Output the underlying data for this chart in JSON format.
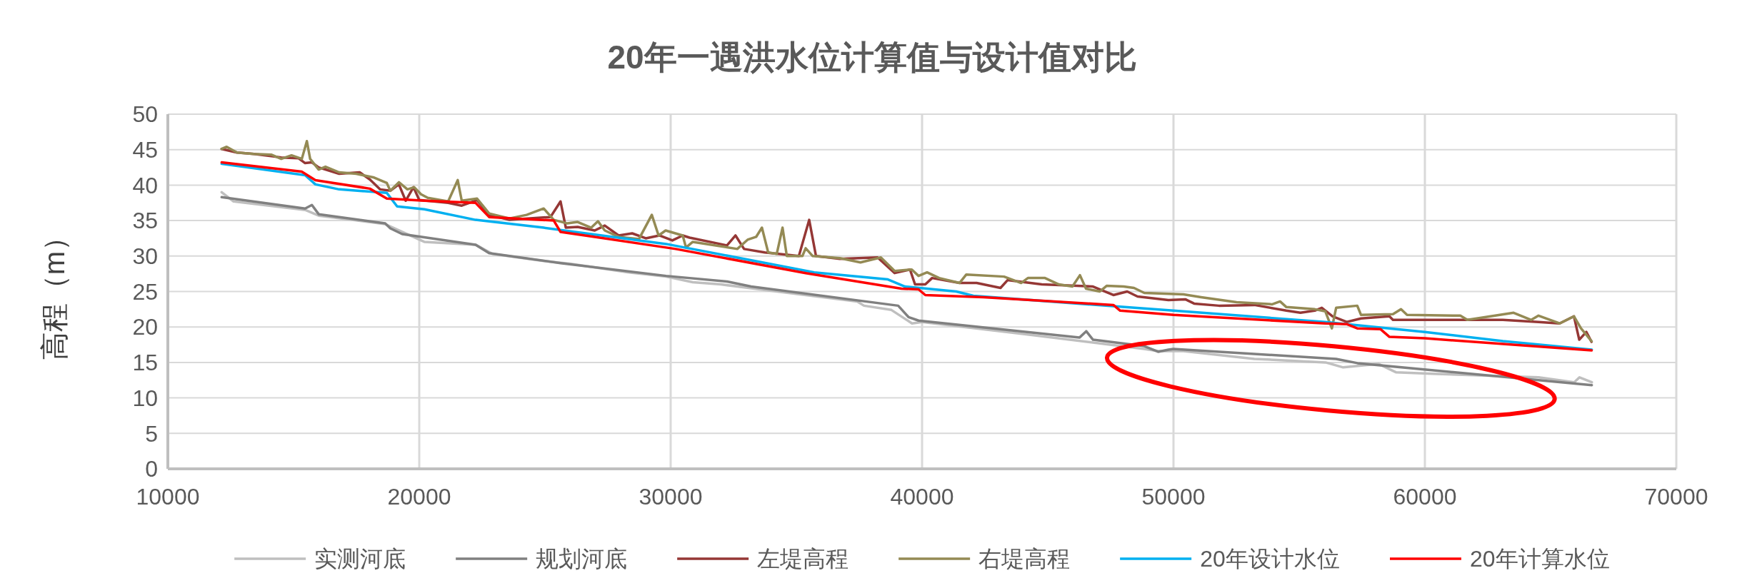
{
  "chart_data": {
    "type": "line",
    "title": "20年一遇洪水位计算值与设计值对比",
    "ylabel": "高程（m）",
    "xlim": [
      10000,
      70000
    ],
    "xticks": [
      10000,
      20000,
      30000,
      40000,
      50000,
      60000,
      70000
    ],
    "ylim": [
      0,
      50
    ],
    "yticks": [
      0,
      5,
      10,
      15,
      20,
      25,
      30,
      35,
      40,
      45,
      50
    ],
    "grid": true,
    "legend": "bottom",
    "marker": "none",
    "line_style": "solid",
    "series": [
      {
        "name": "实测河底",
        "color": "#bfbfbf",
        "x": [
          12140,
          12615,
          15460,
          16000,
          18645,
          20200,
          22240,
          22910,
          24950,
          26030,
          28330,
          29820,
          30880,
          32000,
          37420,
          37690,
          38780,
          39600,
          40000,
          44080,
          48840,
          49390,
          50400,
          53220,
          56050,
          56750,
          58150,
          58860,
          60280,
          64520,
          65940,
          66150,
          66640
        ],
        "values": [
          39.0,
          37.7,
          36.5,
          35.7,
          34.5,
          32.0,
          31.6,
          30.3,
          29.3,
          28.9,
          27.7,
          27.1,
          26.3,
          26.0,
          23.6,
          23.0,
          22.4,
          20.5,
          20.7,
          19.0,
          16.9,
          16.6,
          16.6,
          15.5,
          15.0,
          14.3,
          14.8,
          13.6,
          13.4,
          12.9,
          12.2,
          12.9,
          12.2
        ]
      },
      {
        "name": "规划河底",
        "color": "#808080",
        "x": [
          12140,
          15460,
          15730,
          16000,
          18645,
          18850,
          19320,
          22240,
          22780,
          25620,
          29820,
          32245,
          33200,
          39050,
          39460,
          39860,
          46260,
          46530,
          46800,
          48840,
          49390,
          49800,
          50000,
          56470,
          57320,
          66640
        ],
        "values": [
          38.3,
          36.7,
          37.2,
          35.9,
          34.6,
          33.9,
          33.1,
          31.6,
          30.4,
          29.0,
          27.2,
          26.4,
          25.7,
          23.0,
          21.4,
          20.9,
          18.5,
          19.4,
          18.2,
          17.3,
          16.5,
          16.8,
          16.9,
          15.5,
          14.9,
          11.8
        ]
      },
      {
        "name": "左堤高程",
        "color": "#953735",
        "x": [
          12140,
          12750,
          13430,
          14510,
          15190,
          15460,
          15730,
          16000,
          16815,
          17630,
          18035,
          18440,
          18850,
          19190,
          19460,
          19770,
          20000,
          21150,
          21690,
          22300,
          22780,
          23590,
          25220,
          25620,
          25830,
          26300,
          26980,
          27380,
          27930,
          28470,
          29010,
          29550,
          30070,
          30480,
          30750,
          32240,
          32580,
          32920,
          33740,
          35100,
          35510,
          35780,
          36730,
          38230,
          38910,
          39520,
          39720,
          40130,
          40400,
          41490,
          42170,
          43120,
          43400,
          44760,
          46800,
          47610,
          48160,
          48570,
          49800,
          50470,
          50820,
          51810,
          53220,
          54490,
          55050,
          55620,
          55900,
          56330,
          56890,
          57460,
          58590,
          58730,
          60280,
          63100,
          64520,
          65360,
          65930,
          66140,
          66420,
          66630
        ],
        "values": [
          45.1,
          44.6,
          44.4,
          43.9,
          43.8,
          43.1,
          43.2,
          42.5,
          41.6,
          41.8,
          40.8,
          39.4,
          39.2,
          40.1,
          37.8,
          39.7,
          37.9,
          37.5,
          37.1,
          37.9,
          35.8,
          35.1,
          35.5,
          37.7,
          34.0,
          34.1,
          33.6,
          34.3,
          32.9,
          33.2,
          32.5,
          32.9,
          32.2,
          32.9,
          32.6,
          31.5,
          32.9,
          31.0,
          30.5,
          30.0,
          35.1,
          30.0,
          29.6,
          29.8,
          27.6,
          28.1,
          26.0,
          26.0,
          26.9,
          26.2,
          26.2,
          25.5,
          26.6,
          26.0,
          25.7,
          24.5,
          25.0,
          24.3,
          23.8,
          23.9,
          23.3,
          23.0,
          23.1,
          22.3,
          22.0,
          22.3,
          22.7,
          21.5,
          20.7,
          21.2,
          21.5,
          21.0,
          21.0,
          21.0,
          20.7,
          20.5,
          21.5,
          18.2,
          19.3,
          17.9
        ]
      },
      {
        "name": "右堤高程",
        "color": "#948a54",
        "x": [
          12140,
          12340,
          12750,
          13430,
          14110,
          14510,
          14920,
          15330,
          15530,
          15660,
          16000,
          16270,
          16815,
          17490,
          18170,
          18710,
          18850,
          19190,
          19530,
          19800,
          20070,
          20340,
          21150,
          21530,
          21690,
          22300,
          22780,
          23590,
          24270,
          24950,
          25350,
          25890,
          26300,
          26840,
          27110,
          27380,
          27930,
          28740,
          29250,
          29520,
          29800,
          30480,
          30610,
          30880,
          32650,
          33060,
          33400,
          33630,
          33880,
          34220,
          34450,
          34620,
          35240,
          35370,
          35650,
          36730,
          37550,
          38360,
          38910,
          39590,
          39860,
          40200,
          40680,
          41490,
          41760,
          43260,
          43940,
          44210,
          44890,
          45440,
          45980,
          46280,
          46520,
          47070,
          47340,
          48020,
          48430,
          48840,
          50400,
          51100,
          52510,
          53930,
          54240,
          54490,
          55620,
          56040,
          56300,
          56470,
          57310,
          57460,
          58730,
          59050,
          59290,
          61410,
          61690,
          63530,
          64230,
          64520,
          65360,
          65930,
          66210,
          66630
        ],
        "values": [
          45.1,
          45.4,
          44.6,
          44.4,
          44.3,
          43.7,
          44.2,
          43.7,
          46.2,
          43.7,
          42.2,
          42.6,
          41.8,
          41.6,
          41.1,
          40.3,
          39.2,
          40.4,
          39.4,
          39.7,
          38.7,
          38.2,
          37.7,
          40.7,
          37.8,
          38.1,
          36.0,
          35.3,
          35.8,
          36.7,
          35.1,
          34.6,
          34.8,
          34.0,
          34.9,
          33.6,
          32.7,
          32.4,
          35.8,
          32.9,
          33.6,
          32.9,
          31.2,
          32.0,
          31.0,
          32.3,
          32.7,
          34.0,
          30.5,
          30.3,
          34.0,
          30.0,
          30.0,
          31.1,
          30.0,
          29.7,
          29.1,
          29.8,
          27.9,
          28.1,
          27.2,
          27.7,
          26.9,
          26.2,
          27.4,
          27.1,
          26.2,
          26.9,
          26.9,
          26.0,
          25.7,
          27.3,
          25.4,
          25.0,
          25.8,
          25.7,
          25.5,
          24.8,
          24.6,
          24.2,
          23.5,
          23.2,
          23.6,
          22.8,
          22.5,
          22.2,
          19.8,
          22.7,
          23.0,
          21.7,
          21.8,
          22.5,
          21.7,
          21.6,
          21.0,
          22.0,
          21.0,
          21.6,
          20.5,
          21.5,
          19.8,
          18.0
        ]
      },
      {
        "name": "20年设计水位",
        "color": "#00b0f0",
        "x": [
          12140,
          15460,
          15870,
          16815,
          18710,
          19120,
          20200,
          22240,
          24950,
          29820,
          35710,
          38640,
          39320,
          41360,
          42040,
          50000,
          56040,
          60000,
          63100,
          66640
        ],
        "values": [
          43.0,
          41.4,
          40.1,
          39.4,
          38.9,
          37.0,
          36.6,
          35.1,
          34.0,
          31.7,
          27.7,
          26.7,
          25.7,
          25.0,
          24.4,
          22.3,
          20.7,
          19.3,
          18.0,
          16.8
        ]
      },
      {
        "name": "20年计算水位",
        "color": "#ff0000",
        "x": [
          12140,
          15325,
          15870,
          18035,
          18710,
          20200,
          22240,
          22780,
          25350,
          25620,
          26980,
          29820,
          30200,
          35370,
          39180,
          39860,
          40130,
          42440,
          47610,
          47880,
          50000,
          56040,
          56890,
          57310,
          58230,
          58590,
          60000,
          66630
        ],
        "values": [
          43.2,
          41.9,
          40.7,
          39.5,
          38.1,
          37.8,
          37.5,
          35.5,
          35.0,
          33.4,
          32.7,
          31.2,
          31.0,
          27.6,
          25.4,
          25.3,
          24.5,
          24.2,
          23.1,
          22.3,
          21.7,
          20.5,
          20.4,
          19.8,
          19.7,
          18.6,
          18.4,
          16.7
        ]
      }
    ]
  }
}
